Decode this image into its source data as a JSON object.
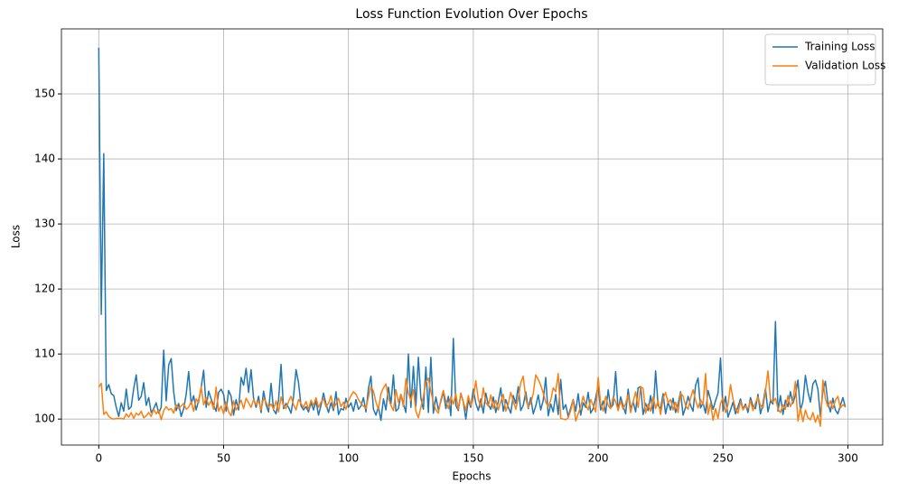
{
  "chart_data": {
    "type": "line",
    "title": "Loss Function Evolution Over Epochs",
    "xlabel": "Epochs",
    "ylabel": "Loss",
    "x": [
      0,
      1,
      2,
      3,
      4,
      5,
      6,
      7,
      8,
      9,
      10,
      11,
      12,
      13,
      14,
      15,
      16,
      17,
      18,
      19,
      20,
      21,
      22,
      23,
      24,
      25,
      26,
      27,
      28,
      29,
      30,
      31,
      32,
      33,
      34,
      35,
      36,
      37,
      38,
      39,
      40,
      41,
      42,
      43,
      44,
      45,
      46,
      47,
      48,
      49,
      50,
      51,
      52,
      53,
      54,
      55,
      56,
      57,
      58,
      59,
      60,
      61,
      62,
      63,
      64,
      65,
      66,
      67,
      68,
      69,
      70,
      71,
      72,
      73,
      74,
      75,
      76,
      77,
      78,
      79,
      80,
      81,
      82,
      83,
      84,
      85,
      86,
      87,
      88,
      89,
      90,
      91,
      92,
      93,
      94,
      95,
      96,
      97,
      98,
      99,
      100,
      101,
      102,
      103,
      104,
      105,
      106,
      107,
      108,
      109,
      110,
      111,
      112,
      113,
      114,
      115,
      116,
      117,
      118,
      119,
      120,
      121,
      122,
      123,
      124,
      125,
      126,
      127,
      128,
      129,
      130,
      131,
      132,
      133,
      134,
      135,
      136,
      137,
      138,
      139,
      140,
      141,
      142,
      143,
      144,
      145,
      146,
      147,
      148,
      149,
      150,
      151,
      152,
      153,
      154,
      155,
      156,
      157,
      158,
      159,
      160,
      161,
      162,
      163,
      164,
      165,
      166,
      167,
      168,
      169,
      170,
      171,
      172,
      173,
      174,
      175,
      176,
      177,
      178,
      179,
      180,
      181,
      182,
      183,
      184,
      185,
      186,
      187,
      188,
      189,
      190,
      191,
      192,
      193,
      194,
      195,
      196,
      197,
      198,
      199,
      200,
      201,
      202,
      203,
      204,
      205,
      206,
      207,
      208,
      209,
      210,
      211,
      212,
      213,
      214,
      215,
      216,
      217,
      218,
      219,
      220,
      221,
      222,
      223,
      224,
      225,
      226,
      227,
      228,
      229,
      230,
      231,
      232,
      233,
      234,
      235,
      236,
      237,
      238,
      239,
      240,
      241,
      242,
      243,
      244,
      245,
      246,
      247,
      248,
      249,
      250,
      251,
      252,
      253,
      254,
      255,
      256,
      257,
      258,
      259,
      260,
      261,
      262,
      263,
      264,
      265,
      266,
      267,
      268,
      269,
      270,
      271,
      272,
      273,
      274,
      275,
      276,
      277,
      278,
      279,
      280,
      281,
      282,
      283,
      284,
      285,
      286,
      287,
      288,
      289,
      290,
      291,
      292,
      293,
      294,
      295,
      296,
      297,
      298,
      299
    ],
    "series": [
      {
        "name": "Training Loss",
        "color": "#1f77b4",
        "values": [
          157.1,
          116.1,
          140.8,
          104.4,
          105.3,
          103.9,
          103.6,
          101.8,
          100.4,
          102.5,
          101.2,
          104.6,
          101.5,
          101.9,
          104.7,
          106.8,
          102.9,
          103.5,
          105.6,
          102.1,
          103.3,
          101.0,
          101.6,
          102.5,
          100.9,
          101.8,
          110.6,
          102.8,
          108.3,
          109.3,
          104.2,
          101.3,
          102.4,
          100.4,
          101.6,
          103.8,
          107.3,
          102.3,
          103.6,
          101.4,
          102.9,
          104.8,
          107.5,
          101.8,
          104.3,
          103.1,
          102.1,
          101.2,
          104.1,
          104.6,
          103.8,
          101.2,
          104.4,
          103.5,
          100.6,
          103.0,
          101.4,
          106.4,
          105.2,
          107.8,
          104.1,
          107.6,
          103.2,
          101.8,
          103.5,
          101.0,
          104.3,
          102.2,
          101.1,
          105.5,
          101.4,
          100.8,
          102.9,
          108.4,
          101.6,
          102.4,
          101.8,
          100.9,
          103.4,
          107.6,
          105.6,
          102.0,
          101.4,
          101.9,
          101.1,
          102.5,
          101.4,
          102.8,
          100.6,
          102.1,
          104.0,
          102.3,
          101.0,
          102.5,
          101.3,
          104.2,
          100.7,
          101.6,
          101.4,
          103.2,
          101.8,
          102.5,
          101.2,
          103.0,
          101.5,
          102.0,
          103.3,
          101.1,
          104.7,
          106.6,
          101.5,
          100.6,
          101.9,
          99.8,
          103.1,
          101.4,
          104.9,
          102.3,
          106.8,
          101.2,
          101.6,
          103.8,
          102.4,
          101.0,
          110.0,
          101.8,
          108.1,
          102.0,
          109.5,
          103.2,
          101.5,
          108.0,
          101.0,
          109.5,
          100.9,
          103.4,
          101.4,
          102.7,
          104.2,
          101.6,
          103.5,
          100.5,
          112.4,
          102.1,
          101.3,
          103.9,
          102.6,
          100.0,
          102.9,
          101.8,
          104.6,
          102.4,
          101.3,
          103.1,
          100.9,
          104.0,
          102.2,
          101.5,
          103.4,
          101.0,
          102.7,
          104.8,
          101.2,
          103.0,
          101.8,
          100.9,
          103.6,
          102.4,
          105.0,
          101.3,
          102.1,
          104.2,
          101.6,
          103.3,
          100.8,
          102.0,
          103.7,
          101.4,
          102.9,
          106.4,
          100.5,
          102.3,
          101.1,
          103.8,
          100.7,
          106.1,
          101.5,
          102.2,
          100.4,
          101.7,
          103.0,
          101.2,
          103.9,
          100.6,
          102.5,
          101.8,
          104.1,
          100.9,
          101.6,
          103.3,
          105.1,
          101.4,
          102.8,
          100.9,
          104.5,
          101.7,
          102.2,
          107.3,
          101.3,
          103.4,
          102.0,
          100.8,
          104.6,
          101.5,
          102.7,
          101.1,
          104.8,
          105.0,
          100.7,
          102.4,
          101.3,
          103.6,
          100.9,
          107.4,
          102.1,
          101.6,
          103.9,
          100.8,
          102.6,
          101.4,
          103.2,
          101.0,
          102.3,
          104.2,
          100.6,
          101.8,
          103.5,
          102.1,
          101.2,
          105.2,
          106.3,
          101.7,
          102.5,
          100.9,
          104.4,
          103.0,
          101.5,
          102.8,
          104.0,
          109.4,
          101.2,
          103.5,
          100.3,
          101.4,
          102.6,
          100.8,
          101.9,
          103.1,
          101.5,
          102.3,
          101.0,
          103.3,
          102.0,
          101.6,
          103.8,
          100.8,
          102.4,
          104.7,
          101.1,
          102.8,
          102.3,
          115.0,
          101.2,
          103.6,
          100.7,
          102.9,
          101.9,
          104.2,
          102.4,
          103.7,
          106.0,
          101.3,
          102.7,
          106.7,
          104.2,
          102.6,
          105.4,
          106.0,
          104.6,
          100.4,
          104.3,
          105.8,
          102.5,
          101.1,
          103.2,
          101.4,
          100.8,
          102.1,
          103.3,
          101.8
        ]
      },
      {
        "name": "Validation Loss",
        "color": "#ff7f0e",
        "values": [
          104.9,
          105.5,
          100.7,
          101.1,
          100.4,
          100.1,
          100.0,
          100.1,
          100.1,
          100.1,
          100.0,
          100.8,
          100.3,
          101.0,
          100.1,
          100.9,
          100.6,
          101.2,
          100.2,
          100.5,
          101.0,
          100.4,
          101.5,
          100.8,
          101.4,
          99.9,
          101.3,
          101.9,
          101.4,
          101.6,
          100.9,
          102.2,
          101.6,
          102.0,
          102.4,
          101.5,
          101.8,
          102.7,
          101.2,
          103.1,
          102.5,
          105.0,
          102.2,
          103.3,
          102.1,
          102.8,
          101.5,
          104.9,
          101.2,
          102.0,
          100.8,
          102.6,
          101.1,
          100.5,
          102.8,
          101.4,
          102.1,
          102.9,
          101.6,
          103.2,
          102.5,
          101.8,
          103.0,
          102.2,
          102.8,
          101.4,
          103.2,
          102.6,
          101.8,
          102.3,
          101.5,
          102.8,
          101.1,
          103.4,
          102.0,
          101.6,
          102.7,
          103.5,
          102.2,
          101.4,
          103.0,
          102.4,
          101.8,
          102.7,
          101.5,
          102.9,
          102.1,
          103.3,
          101.8,
          102.6,
          103.1,
          101.9,
          102.4,
          103.6,
          101.7,
          102.3,
          103.2,
          101.9,
          102.6,
          101.5,
          102.8,
          103.6,
          104.2,
          103.8,
          103.0,
          102.4,
          102.0,
          101.6,
          103.4,
          105.0,
          104.3,
          102.6,
          101.5,
          103.9,
          104.8,
          105.4,
          103.2,
          102.1,
          101.3,
          104.5,
          102.6,
          103.8,
          101.9,
          106.2,
          104.0,
          102.8,
          104.5,
          101.2,
          100.2,
          101.8,
          103.5,
          105.6,
          106.3,
          104.2,
          102.6,
          101.4,
          100.9,
          103.0,
          104.4,
          102.8,
          101.6,
          103.4,
          102.3,
          103.9,
          101.5,
          104.0,
          102.7,
          101.3,
          103.6,
          102.1,
          103.2,
          105.9,
          103.0,
          101.8,
          104.8,
          102.5,
          102.0,
          103.7,
          101.6,
          102.9,
          101.4,
          102.7,
          103.8,
          101.2,
          102.3,
          104.1,
          102.8,
          101.5,
          103.2,
          105.6,
          106.6,
          103.1,
          101.8,
          102.5,
          103.9,
          106.8,
          106.1,
          105.2,
          104.0,
          102.6,
          101.9,
          102.9,
          104.8,
          104.2,
          107.0,
          100.1,
          100.0,
          99.9,
          100.2,
          101.3,
          102.9,
          99.7,
          100.8,
          101.9,
          103.5,
          102.2,
          101.4,
          103.0,
          102.1,
          101.1,
          106.4,
          102.3,
          101.2,
          103.5,
          102.1,
          101.6,
          103.4,
          102.7,
          101.3,
          102.8,
          101.5,
          102.4,
          103.7,
          101.0,
          102.6,
          104.2,
          101.8,
          105.0,
          104.7,
          100.9,
          102.3,
          101.2,
          103.4,
          101.6,
          102.8,
          100.7,
          103.2,
          104.1,
          102.5,
          103.0,
          101.4,
          102.6,
          101.0,
          104.0,
          103.5,
          102.1,
          101.5,
          103.2,
          104.5,
          102.9,
          101.7,
          103.0,
          102.2,
          107.0,
          100.7,
          102.5,
          99.8,
          101.6,
          100.1,
          102.4,
          103.3,
          101.0,
          102.2,
          105.3,
          103.1,
          101.6,
          100.9,
          102.7,
          101.4,
          102.0,
          101.6,
          102.8,
          101.3,
          102.5,
          103.4,
          102.1,
          101.7,
          104.3,
          107.4,
          103.0,
          102.6,
          103.2,
          101.6,
          101.0,
          102.2,
          101.5,
          103.6,
          101.9,
          102.8,
          105.8,
          99.7,
          101.7,
          99.6,
          101.4,
          100.2,
          99.9,
          101.0,
          99.5,
          100.6,
          98.9,
          106.0,
          103.1,
          101.9,
          102.8,
          101.6,
          102.9,
          103.5,
          101.7,
          102.2,
          101.9
        ]
      }
    ],
    "xlim": [
      -14.95,
      313.95
    ],
    "ylim": [
      96,
      160
    ],
    "xticks": [
      0,
      50,
      100,
      150,
      200,
      250,
      300
    ],
    "yticks": [
      100,
      110,
      120,
      130,
      140,
      150
    ],
    "grid": true,
    "legend": "upper right"
  }
}
